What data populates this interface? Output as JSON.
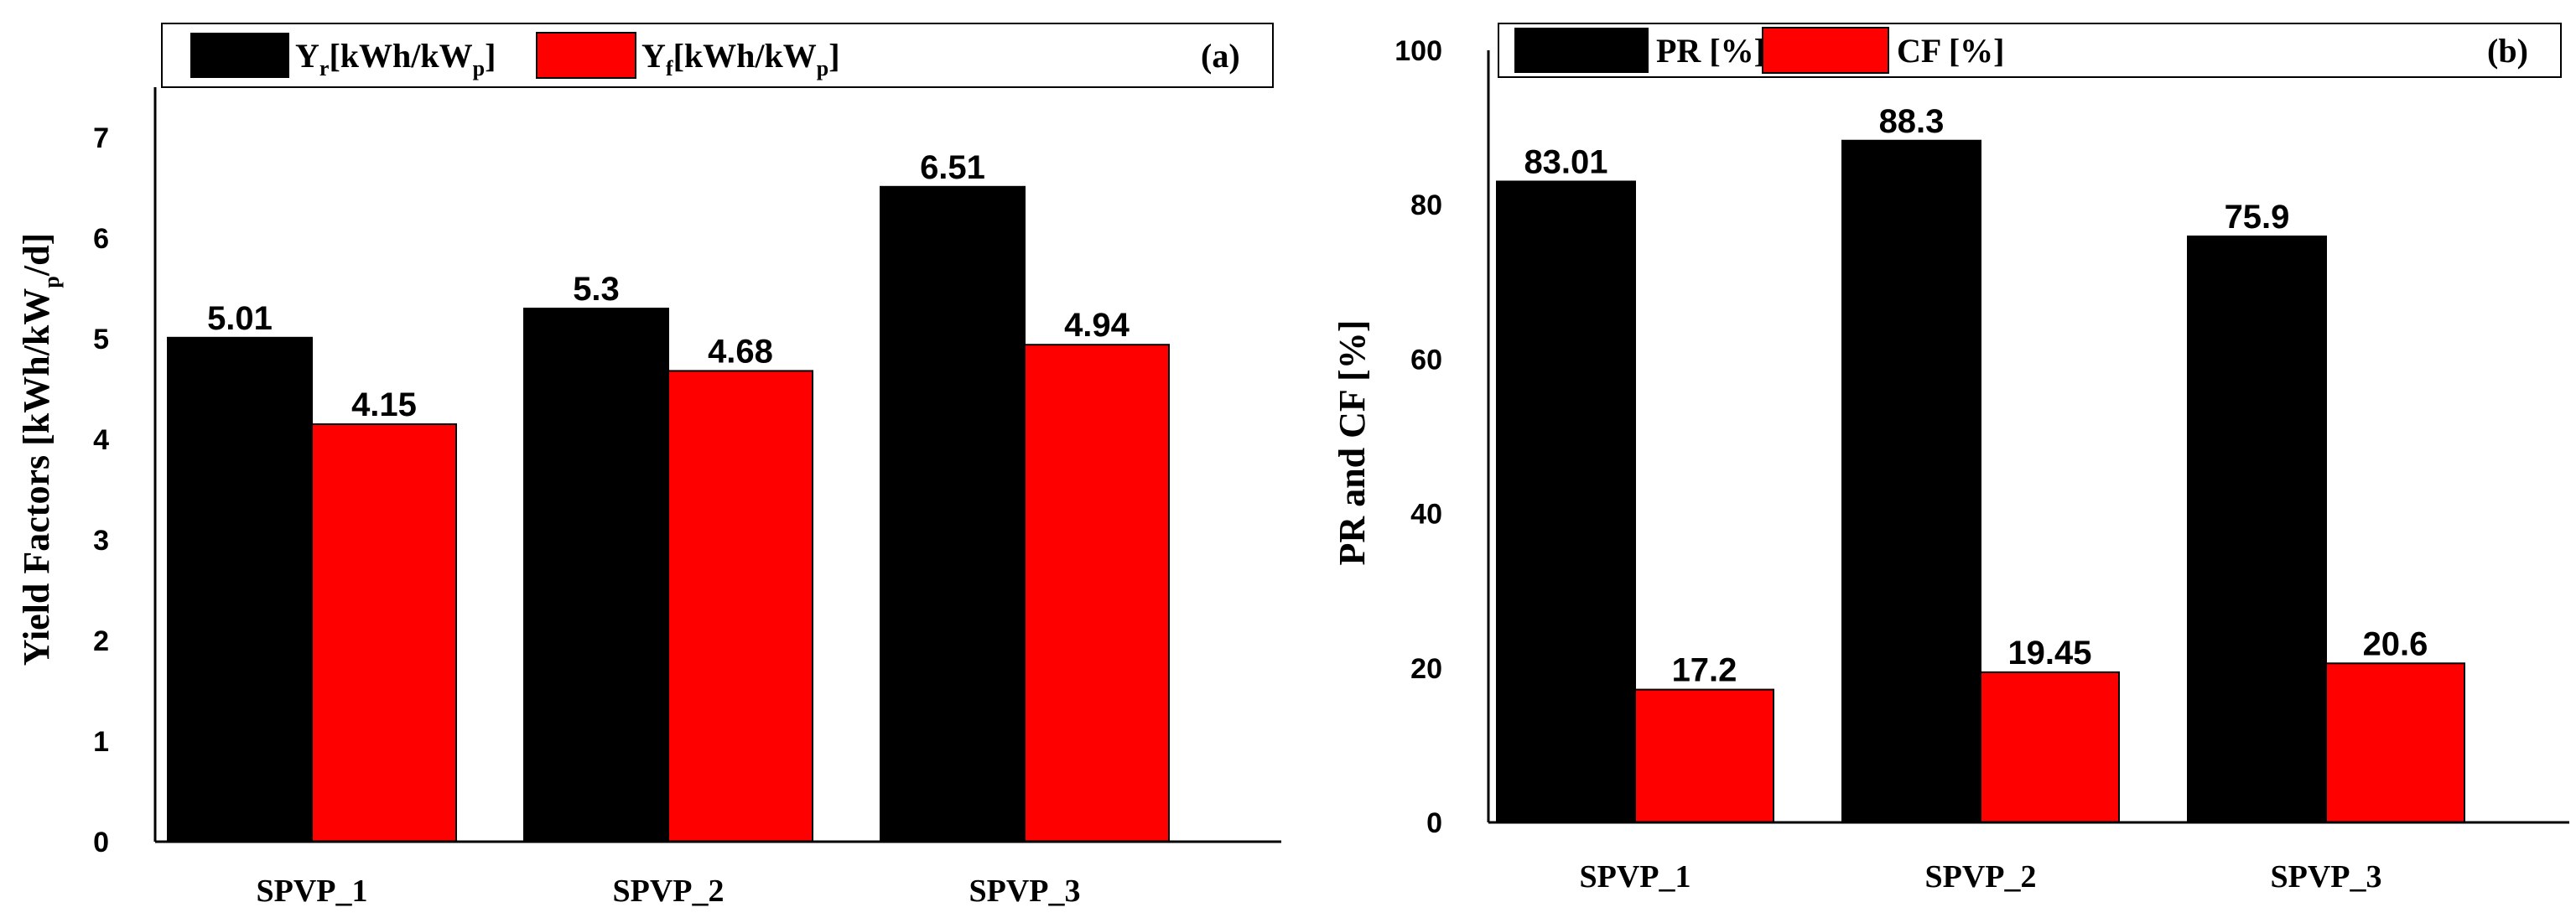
{
  "chart_data": [
    {
      "id": "a",
      "type": "bar",
      "panel_label": "(a)",
      "categories": [
        "SPVP_1",
        "SPVP_2",
        "SPVP_3"
      ],
      "series": [
        {
          "name": "Yr[kWh/kWp]",
          "legend_main": "Y",
          "legend_sub": "r",
          "legend_mid": "[kWh/kW",
          "legend_sub2": "p",
          "legend_end": "]",
          "color": "#000000",
          "values": [
            5.01,
            5.3,
            6.51
          ],
          "labels": [
            "5.01",
            "5.3",
            "6.51"
          ]
        },
        {
          "name": "Yf[kWh/kWp]",
          "legend_main": "Y",
          "legend_sub": "f",
          "legend_mid": "[kWh/kW",
          "legend_sub2": "p",
          "legend_end": "]",
          "color": "#ff0000",
          "values": [
            4.15,
            4.68,
            4.94
          ],
          "labels": [
            "4.15",
            "4.68",
            "4.94"
          ]
        }
      ],
      "ylabel_main": "Yield Factors [kWh/kW",
      "ylabel_sub": "p",
      "ylabel_end": "/d]",
      "ylim": [
        0,
        7.5
      ],
      "yticks": [
        "0",
        "1",
        "2",
        "3",
        "4",
        "5",
        "6",
        "7"
      ],
      "legend_position": "top"
    },
    {
      "id": "b",
      "type": "bar",
      "panel_label": "(b)",
      "categories": [
        "SPVP_1",
        "SPVP_2",
        "SPVP_3"
      ],
      "series": [
        {
          "name": "PR [%]",
          "color": "#000000",
          "values": [
            83.01,
            88.3,
            75.9
          ],
          "labels": [
            "83.01",
            "88.3",
            "75.9"
          ]
        },
        {
          "name": "CF [%]",
          "color": "#ff0000",
          "values": [
            17.2,
            19.45,
            20.6
          ],
          "labels": [
            "17.2",
            "19.45",
            "20.6"
          ]
        }
      ],
      "ylabel": "PR and CF [%]",
      "ylim": [
        0,
        100
      ],
      "yticks": [
        "0",
        "20",
        "40",
        "60",
        "80",
        "100"
      ],
      "legend_position": "top"
    }
  ]
}
